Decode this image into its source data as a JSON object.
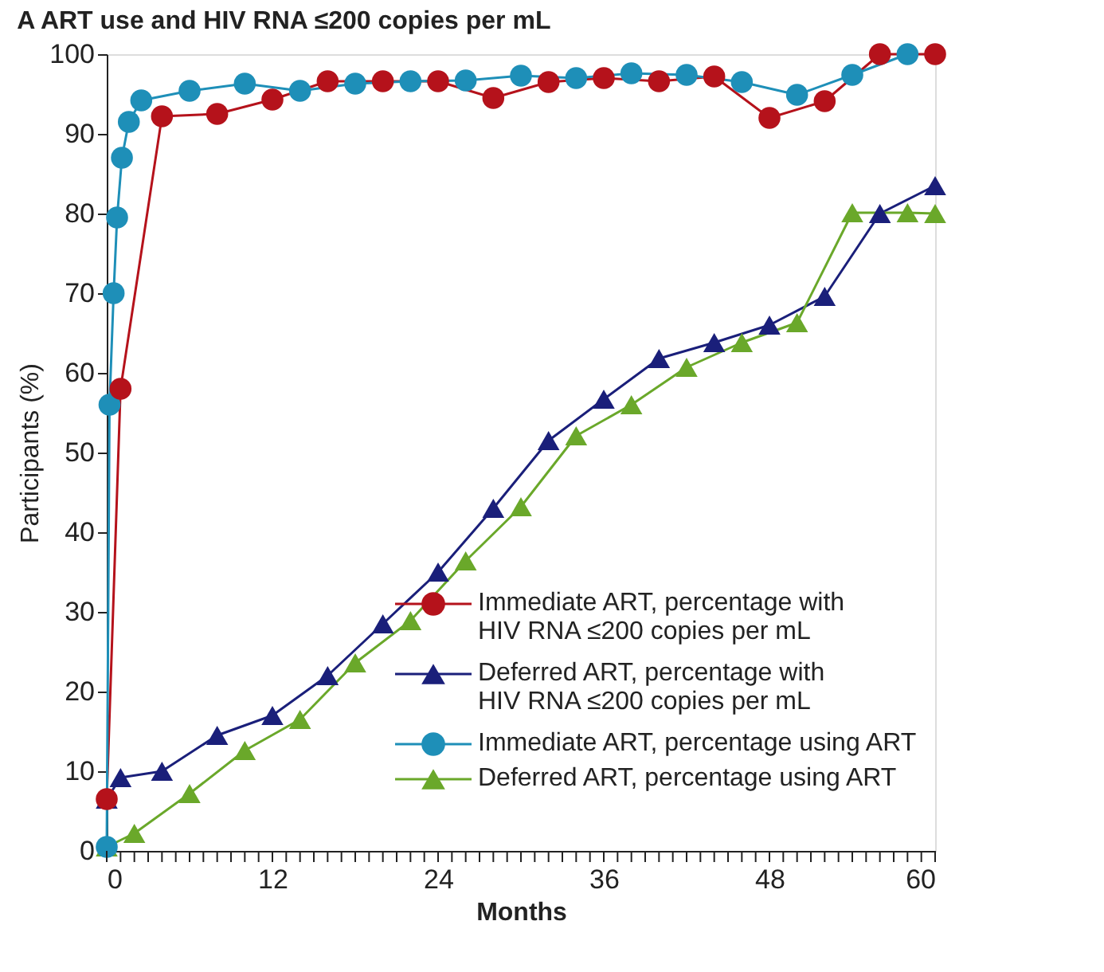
{
  "chart_data": {
    "type": "line",
    "title": "A  ART use and HIV RNA ≤200 copies per mL",
    "xlabel": "Months",
    "ylabel": "Participants (%)",
    "xlim": [
      0,
      60
    ],
    "ylim": [
      0,
      100
    ],
    "xticks": [
      0,
      {
        "value": 1,
        "label": null
      },
      {
        "value": 2,
        "label": null
      },
      {
        "value": 3,
        "label": null
      },
      {
        "value": 4,
        "label": null
      },
      {
        "value": 5,
        "label": null
      },
      {
        "value": 6,
        "label": null
      },
      {
        "value": 7,
        "label": null
      },
      {
        "value": 8,
        "label": null
      },
      {
        "value": 9,
        "label": null
      },
      {
        "value": 10,
        "label": null
      },
      {
        "value": 11,
        "label": null
      },
      12,
      {
        "value": 13,
        "label": null
      },
      {
        "value": 14,
        "label": null
      },
      {
        "value": 15,
        "label": null
      },
      {
        "value": 16,
        "label": null
      },
      {
        "value": 17,
        "label": null
      },
      {
        "value": 18,
        "label": null
      },
      {
        "value": 19,
        "label": null
      },
      {
        "value": 20,
        "label": null
      },
      {
        "value": 21,
        "label": null
      },
      {
        "value": 22,
        "label": null
      },
      {
        "value": 23,
        "label": null
      },
      24,
      {
        "value": 25,
        "label": null
      },
      {
        "value": 26,
        "label": null
      },
      {
        "value": 27,
        "label": null
      },
      {
        "value": 28,
        "label": null
      },
      {
        "value": 29,
        "label": null
      },
      {
        "value": 30,
        "label": null
      },
      {
        "value": 31,
        "label": null
      },
      {
        "value": 32,
        "label": null
      },
      {
        "value": 33,
        "label": null
      },
      {
        "value": 34,
        "label": null
      },
      {
        "value": 35,
        "label": null
      },
      36,
      {
        "value": 37,
        "label": null
      },
      {
        "value": 38,
        "label": null
      },
      {
        "value": 39,
        "label": null
      },
      {
        "value": 40,
        "label": null
      },
      {
        "value": 41,
        "label": null
      },
      {
        "value": 42,
        "label": null
      },
      {
        "value": 43,
        "label": null
      },
      {
        "value": 44,
        "label": null
      },
      {
        "value": 45,
        "label": null
      },
      {
        "value": 46,
        "label": null
      },
      {
        "value": 47,
        "label": null
      },
      48,
      {
        "value": 49,
        "label": null
      },
      {
        "value": 50,
        "label": null
      },
      {
        "value": 51,
        "label": null
      },
      {
        "value": 52,
        "label": null
      },
      {
        "value": 53,
        "label": null
      },
      {
        "value": 54,
        "label": null
      },
      {
        "value": 55,
        "label": null
      },
      {
        "value": 56,
        "label": null
      },
      {
        "value": 57,
        "label": null
      },
      {
        "value": 58,
        "label": null
      },
      {
        "value": 59,
        "label": null
      },
      60
    ],
    "yticks": [
      0,
      10,
      20,
      30,
      40,
      50,
      60,
      70,
      80,
      90,
      100
    ],
    "grid": false,
    "legend": "bottom right",
    "line_style": "solid",
    "series": [
      {
        "name": "Immediate ART, percentage with HIV RNA ≤200 copies per mL",
        "color": "#b5121b",
        "marker": "circle",
        "x": [
          0,
          1,
          4,
          8,
          12,
          16,
          20,
          24,
          28,
          32,
          36,
          40,
          44,
          48,
          52,
          56,
          60
        ],
        "values": [
          6.5,
          58,
          92.2,
          92.5,
          94.3,
          96.6,
          96.6,
          96.6,
          94.5,
          96.5,
          97,
          96.6,
          97.2,
          92,
          94.1,
          100,
          100
        ]
      },
      {
        "name": "Deferred ART, percentage with HIV RNA ≤200 copies per mL",
        "color": "#1a1f7a",
        "marker": "triangle",
        "x": [
          0,
          1,
          4,
          8,
          12,
          16,
          20,
          24,
          28,
          32,
          36,
          40,
          44,
          48,
          52,
          56,
          60
        ],
        "values": [
          6.5,
          9.2,
          10,
          14.5,
          17,
          22,
          28.5,
          35,
          43,
          51.5,
          56.7,
          61.8,
          63.8,
          66,
          69.6,
          80,
          83.5
        ]
      },
      {
        "name": "Immediate ART, percentage using ART",
        "color": "#1e8fb8",
        "marker": "circle",
        "x": [
          0,
          0.2,
          0.5,
          0.75,
          1.1,
          1.6,
          2.5,
          6,
          10,
          14,
          18,
          22,
          26,
          30,
          34,
          38,
          42,
          46,
          50,
          54,
          58
        ],
        "values": [
          0.5,
          56,
          70,
          79.5,
          87,
          91.5,
          94.2,
          95.4,
          96.3,
          95.4,
          96.3,
          96.6,
          96.7,
          97.3,
          97,
          97.6,
          97.4,
          96.5,
          94.9,
          97.4,
          100
        ]
      },
      {
        "name": "Deferred ART, percentage using ART",
        "color": "#6aa82a",
        "marker": "triangle",
        "x": [
          0,
          2,
          6,
          10,
          14,
          18,
          22,
          26,
          30,
          34,
          38,
          42,
          46,
          50,
          54,
          58,
          60
        ],
        "values": [
          0.5,
          2.2,
          7.2,
          12.6,
          16.5,
          23.6,
          28.9,
          36.4,
          43.2,
          52.1,
          56,
          60.7,
          63.8,
          66.3,
          80.1,
          80.1,
          80
        ]
      }
    ]
  }
}
